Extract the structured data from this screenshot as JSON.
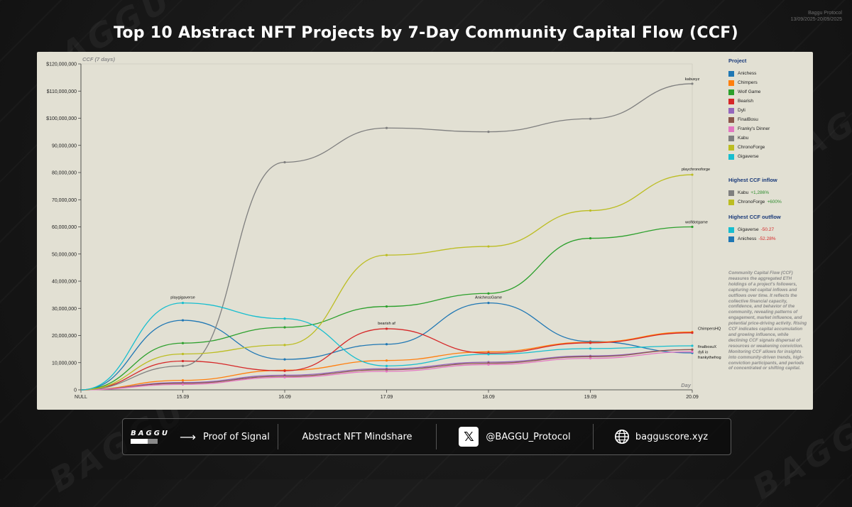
{
  "header": {
    "title": "Top 10 Abstract NFT Projects by 7-Day Community Capital Flow (CCF)",
    "meta_brand": "Baggu Protocol",
    "meta_range": "13/09/2025-20/09/2025"
  },
  "colors": {
    "Anichess": "#1f77b4",
    "Chimpers": "#ff7f0e",
    "Wolf Game": "#2ca02c",
    "Bearish": "#d62728",
    "Dyli": "#9467bd",
    "FinalBosu": "#8c564b",
    "Franky's Dinner": "#e377c2",
    "Kabu": "#7f7f7f",
    "ChronoForge": "#bcbd22",
    "Gigaverse": "#17becf"
  },
  "chart_data": {
    "type": "line",
    "ylabel": "CCF (7 days)",
    "xlabel": "Day",
    "ylim": [
      0,
      120000000
    ],
    "yticks": [
      0,
      10000000,
      20000000,
      30000000,
      40000000,
      50000000,
      60000000,
      70000000,
      80000000,
      90000000,
      100000000,
      110000000,
      120000000
    ],
    "ytick_labels": [
      "0",
      "10,000,000",
      "20,000,000",
      "30,000,000",
      "40,000,000",
      "50,000,000",
      "60,000,000",
      "70,000,000",
      "80,000,000",
      "90,000,000",
      "$100,000,000",
      "$110,000,000",
      "$120,000,000"
    ],
    "categories": [
      "NULL",
      "15.09",
      "16.09",
      "17.09",
      "18.09",
      "19.09",
      "20.09"
    ],
    "series": [
      {
        "name": "Anichess",
        "values": [
          0,
          25600000,
          11200000,
          16800000,
          32000000,
          17800000,
          13600000
        ]
      },
      {
        "name": "Chimpers",
        "values": [
          0,
          3500000,
          7200000,
          10800000,
          14000000,
          17500000,
          21300000
        ]
      },
      {
        "name": "Wolf Game",
        "values": [
          0,
          17200000,
          23000000,
          30700000,
          35500000,
          55800000,
          60000000
        ]
      },
      {
        "name": "Bearish",
        "values": [
          0,
          10600000,
          7000000,
          22500000,
          13500000,
          17300000,
          21000000
        ]
      },
      {
        "name": "Dyli",
        "values": [
          0,
          2700000,
          5400000,
          7800000,
          10200000,
          12500000,
          14800000
        ]
      },
      {
        "name": "FinalBosu",
        "values": [
          0,
          2400000,
          5000000,
          7400000,
          9800000,
          12200000,
          14800000
        ]
      },
      {
        "name": "Franky's Dinner",
        "values": [
          0,
          2000000,
          4600000,
          6800000,
          9300000,
          11600000,
          14000000
        ]
      },
      {
        "name": "Kabu",
        "values": [
          0,
          8800000,
          83800000,
          96400000,
          95000000,
          99800000,
          112700000
        ]
      },
      {
        "name": "ChronoForge",
        "values": [
          0,
          13200000,
          16500000,
          49600000,
          52800000,
          66000000,
          79200000
        ]
      },
      {
        "name": "Gigaverse",
        "values": [
          0,
          32000000,
          26200000,
          8800000,
          13100000,
          15200000,
          16200000
        ]
      }
    ],
    "annotations": [
      {
        "text": "kabuxyz",
        "x": "20.09",
        "y": 112700000
      },
      {
        "text": "playchronoforge",
        "x": "20.09",
        "y": 79200000
      },
      {
        "text": "wolfdotgame",
        "x": "20.09",
        "y": 60000000
      },
      {
        "text": "playgigaverse",
        "x": "15.09",
        "y": 32000000
      },
      {
        "text": "bearish af",
        "x": "17.09",
        "y": 22500000
      },
      {
        "text": "AnichessGame",
        "x": "18.09",
        "y": 32000000
      },
      {
        "text": "ChimpersHQ",
        "x": "20.09",
        "y": 21300000
      },
      {
        "text": "finalbosuX",
        "x": "20.09",
        "y": 16200000
      },
      {
        "text": "dyli io",
        "x": "20.09",
        "y": 14800000
      },
      {
        "text": "frankythefrog",
        "x": "20.09",
        "y": 13600000
      }
    ],
    "legend_title": "Project",
    "legend_placement": "right"
  },
  "sidebar": {
    "legend_title": "Project",
    "legend_items": [
      "Anichess",
      "Chimpers",
      "Wolf Game",
      "Bearish",
      "Dyli",
      "FinalBosu",
      "Franky's Dinner",
      "Kabu",
      "ChronoForge",
      "Gigaverse"
    ],
    "inflow_title": "Highest CCF inflow",
    "inflow": [
      {
        "name": "Kabu",
        "change": "+1,286%"
      },
      {
        "name": "ChronoForge",
        "change": "+600%"
      }
    ],
    "outflow_title": "Highest CCF outflow",
    "outflow": [
      {
        "name": "Gigaverse",
        "change": "-50.27"
      },
      {
        "name": "Anichess",
        "change": "-52.28%"
      }
    ],
    "description": "Community Capital Flow (CCF) measures the aggregated ETH holdings of a project's followers, capturing net capital inflows and outflows over time. It reflects the collective financial capacity, confidence, and behavior of the community, revealing patterns of engagement, market influence, and potential price-driving activity. Rising CCF indicates capital accumulation and growing influence, while declining CCF signals dispersal of resources or weakening conviction. Monitoring CCF allows for insights into community-driven trends, high-conviction participants, and periods of concentrated or shifting capital."
  },
  "footer": {
    "logo_text": "BAGGU",
    "proof_label": "Proof of Signal",
    "mindshare_label": "Abstract NFT Mindshare",
    "x_handle": "@BAGGU_Protocol",
    "x_icon_glyph": "𝕏",
    "website": "bagguscore.xyz",
    "arrow_glyph": "⟶",
    "icons": [
      "x-logo-icon",
      "globe-icon"
    ]
  },
  "watermark_text": "BAGGU"
}
